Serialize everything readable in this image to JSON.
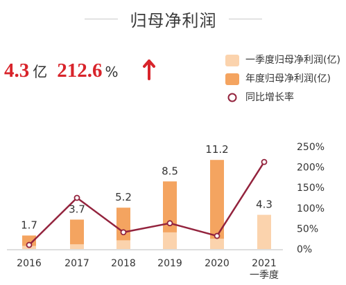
{
  "header": {
    "title": "归母净利润"
  },
  "kpi": {
    "profit_value": "4.3",
    "profit_unit": "亿",
    "growth_value": "212.6",
    "growth_unit": "%"
  },
  "colors": {
    "q1_bar": "#fbd3ad",
    "annual_bar": "#f4a460",
    "line": "#93233d",
    "kpi_red": "#d8242b"
  },
  "chart_data": {
    "type": "bar",
    "categories": [
      "2016",
      "2017",
      "2018",
      "2019",
      "2020",
      "2021\n一季度"
    ],
    "series": [
      {
        "name": "一季度归母净利润(亿)",
        "values": [
          0.4,
          0.6,
          1.1,
          2.1,
          1.3,
          4.3
        ]
      },
      {
        "name": "年度归母净利润(亿)",
        "values": [
          1.7,
          3.7,
          5.2,
          8.5,
          11.2,
          null
        ]
      },
      {
        "name": "同比增长率",
        "values": [
          10,
          125,
          41,
          63,
          32,
          212.6
        ]
      }
    ],
    "data_labels": [
      "1.7",
      "3.7",
      "5.2",
      "8.5",
      "11.2",
      "4.3"
    ],
    "y_left_range": [
      0,
      12
    ],
    "y_right_range": [
      0,
      250
    ],
    "y_right_ticks": [
      "0%",
      "50%",
      "100%",
      "150%",
      "200%",
      "250%"
    ],
    "grid": false,
    "legend_position": "top-right"
  }
}
